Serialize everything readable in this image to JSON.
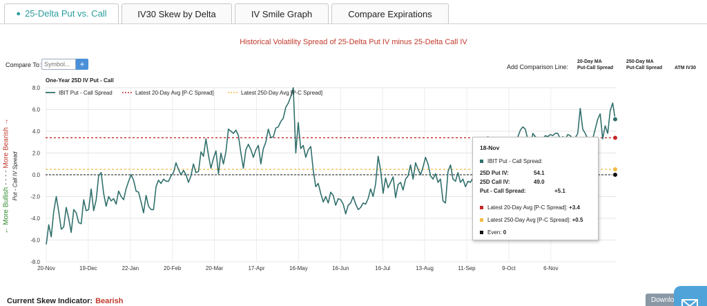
{
  "tabs": [
    {
      "label": "25-Delta Put vs. Call",
      "active": true
    },
    {
      "label": "IV30 Skew by Delta",
      "active": false
    },
    {
      "label": "IV Smile Graph",
      "active": false
    },
    {
      "label": "Compare Expirations",
      "active": false
    }
  ],
  "header": {
    "title": "Historical Volatility Spread of 25-Delta Put IV minus 25-Delta Call IV",
    "compare_label": "Compare To:",
    "symbol_placeholder": "Symbol...",
    "add_symbol_label": "+",
    "add_comparison_label": "Add Comparison Line:",
    "comparison_options": [
      {
        "line1": "20-Day MA",
        "line2": "Put-Call Spread"
      },
      {
        "line1": "250-Day MA",
        "line2": "Put-Call Spread"
      },
      {
        "line1": "ATM IV30",
        "line2": ""
      }
    ]
  },
  "side_labels": {
    "bullish": "← More Bullish",
    "separator": "- - - -",
    "bearish": "More Bearish →",
    "y_axis_title": "Put - Call IV Spread"
  },
  "chart_data": {
    "type": "line",
    "title": "One-Year 25D IV Put - Call",
    "ylim": [
      -8,
      8
    ],
    "y_ticks": [
      "-8.0",
      "-6.0",
      "-4.0",
      "-2.0",
      "0.0",
      "2.0",
      "4.0",
      "6.0",
      "8.0"
    ],
    "x_ticks": [
      "20-Nov",
      "19-Dec",
      "22-Jan",
      "20-Feb",
      "20-Mar",
      "17-Apr",
      "16-May",
      "16-Jun",
      "16-Jul",
      "13-Aug",
      "11-Sep",
      "9-Oct",
      "6-Nov"
    ],
    "legend": [
      "IBIT Put - Call Spread",
      "Latest 20-Day Avg [P-C Spread]",
      "Latest 250-Day Avg [P-C Spread]"
    ],
    "colors": {
      "series": "#2f6f6b",
      "avg20": "#c62828",
      "avg250": "#f4b942",
      "even": "#111111"
    },
    "grid": true,
    "legend_position": "top-left",
    "reference_lines": {
      "avg20": 3.4,
      "avg250": 0.5,
      "even": 0
    },
    "series": [
      {
        "name": "IBIT Put - Call Spread",
        "values": [
          -6.4,
          -4.6,
          -5.7,
          -3.4,
          -2,
          -3.4,
          -5,
          -4.8,
          -3,
          -4,
          -5.3,
          -3.2,
          -3.5,
          -4.4,
          -4.5,
          -2.3,
          -3.3,
          -3.2,
          -1.3,
          -3.3,
          -2.3,
          -0.1,
          0.2,
          -1.7,
          -2.9,
          -2,
          -2.4,
          -2.2,
          -2.7,
          -1.5,
          -2,
          -2.3,
          -1.3,
          -0.6,
          0,
          -0.5,
          -1.5,
          -1.6,
          -2.5,
          -3.5,
          -1.9,
          -2.9,
          -3.2,
          -3.2,
          -1.1,
          -0.5,
          -0.8,
          -0.4,
          -0.6,
          -0.6,
          -0.1,
          0.2,
          1.1,
          0.5,
          0,
          0.4,
          0,
          -0.7,
          -0.1,
          1,
          0.2,
          0.3,
          2.1,
          1.7,
          3.3,
          1.8,
          0.6,
          1.5,
          2.2,
          0.1,
          2,
          1,
          2.1,
          4.2,
          4,
          3.8,
          4.1,
          3.6,
          2,
          0.6,
          2.3,
          2.8,
          2.3,
          1.6,
          2.3,
          2.7,
          1,
          2.4,
          3,
          4.2,
          3.4,
          3.5,
          4.3,
          4.4,
          4.9,
          5.2,
          6.2,
          6.6,
          7.2,
          8,
          2,
          4.8,
          2.4,
          2.7,
          1.6,
          2.3,
          2.6,
          0.4,
          -1.1,
          -0.8,
          -1.7,
          -2.5,
          -2,
          -2.6,
          -1.6,
          -1.9,
          -2.8,
          -2.2,
          -2.3,
          -2.7,
          -3.6,
          -2.8,
          -2.6,
          -2,
          -2.7,
          -3.2,
          -3,
          -2.6,
          -2.7,
          -2.2,
          -1.3,
          -2,
          -0.8,
          1.7,
          0.4,
          -1.7,
          -0.3,
          -1.2,
          -0.7,
          -0.2,
          -2.1,
          -0.9,
          -0.7,
          -1.4,
          -0.4,
          -0.1,
          0.9,
          -0.4,
          1.1,
          0.5,
          0,
          0.7,
          1.6,
          1,
          -0.1,
          -0.4,
          0.1,
          -0.7,
          -0.4,
          -2.4,
          -2.6,
          0.3,
          0.9,
          -0.4,
          -0.6,
          0.2,
          -0.7,
          -0.4,
          -1.1,
          -0.6,
          -0.7,
          -0.3,
          0.3,
          0.9,
          1,
          1,
          0.6,
          3.5,
          1.5,
          1.6,
          0.8,
          1.3,
          2.2,
          2.6,
          1.5,
          1.6,
          1.3,
          0.5,
          2.8,
          3.5,
          4.1,
          4.4,
          4.2,
          3.2,
          2.3,
          3.8,
          3.5,
          3.3,
          3.4,
          3.3,
          3.6,
          3.5,
          3.7,
          3.6,
          3.8,
          3.8,
          3.3,
          3.5,
          3.2,
          3.7,
          3.6,
          3.3,
          3.4,
          3.8,
          6.1,
          4.2,
          3.8,
          3.3,
          3.1,
          3.3,
          4.2,
          5.1,
          5.6,
          3.3,
          4.5,
          3.8,
          5.9,
          6.6,
          5.1
        ]
      }
    ]
  },
  "tooltip": {
    "date": "18-Nov",
    "series_label": "IBIT Put - Call Spread:",
    "put_label": "25D Put IV:",
    "put_value": "54.1",
    "call_label": "25D Call IV:",
    "call_value": "49.0",
    "spread_label": "Put - Call Spread:",
    "spread_value": "+5.1",
    "avg20_label": "Latest 20-Day Avg [P-C Spread]:",
    "avg20_value": "+3.4",
    "avg250_label": "Latest 250-Day Avg [P-C Spread]:",
    "avg250_value": "+0.5",
    "even_label": "Even:",
    "even_value": "0"
  },
  "footer": {
    "skew_label": "Current Skew Indicator:",
    "skew_value": "Bearish",
    "download_label": "Download"
  }
}
